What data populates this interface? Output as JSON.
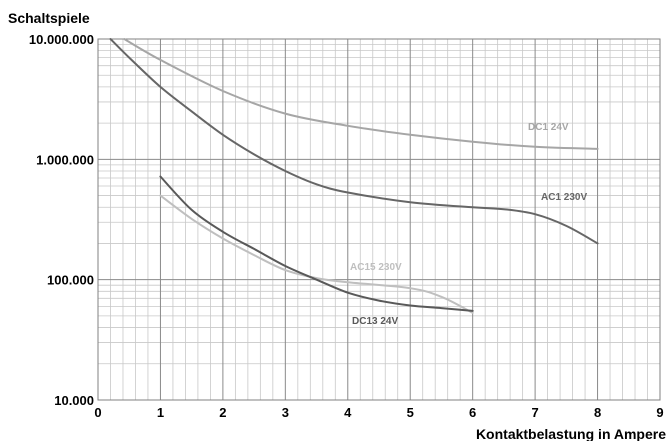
{
  "chart_data": {
    "type": "line",
    "xlabel": "Kontaktbelastung in Ampere",
    "ylabel": "Schaltspiele",
    "xlim": [
      0,
      9
    ],
    "ylim": [
      10000,
      10000000
    ],
    "y_scale": "log",
    "grid": true,
    "x_ticks": [
      "0",
      "1",
      "2",
      "3",
      "4",
      "5",
      "6",
      "7",
      "8",
      "9"
    ],
    "y_ticks": [
      "10.000",
      "100.000",
      "1.000.000",
      "10.000.000"
    ],
    "y_tick_values": [
      10000,
      100000,
      1000000,
      10000000
    ],
    "series": [
      {
        "name": "DC1 24V",
        "color": "#a6a6a6",
        "x": [
          0.42,
          1,
          2,
          3,
          4,
          5,
          6,
          7,
          8
        ],
        "y": [
          10000000,
          6700000,
          3700000,
          2400000,
          1900000,
          1600000,
          1400000,
          1270000,
          1220000
        ]
      },
      {
        "name": "AC1 230V",
        "color": "#666666",
        "x": [
          0.2,
          0.5,
          1,
          1.5,
          2,
          2.5,
          3,
          3.5,
          4,
          5,
          6,
          6.5,
          7,
          7.5,
          8
        ],
        "y": [
          10000000,
          7000000,
          4000000,
          2500000,
          1600000,
          1100000,
          800000,
          620000,
          530000,
          440000,
          400000,
          385000,
          350000,
          280000,
          200000
        ]
      },
      {
        "name": "AC15 230V",
        "color": "#bfbfbf",
        "x": [
          1,
          1.5,
          2,
          2.5,
          3,
          3.5,
          4,
          5,
          5.5,
          6
        ],
        "y": [
          500000,
          320000,
          220000,
          160000,
          120000,
          103000,
          95000,
          85000,
          72000,
          53000
        ]
      },
      {
        "name": "DC13 24V",
        "color": "#595959",
        "x": [
          1,
          1.5,
          2,
          2.5,
          3,
          3.5,
          4,
          4.5,
          5,
          5.5,
          6
        ],
        "y": [
          720000,
          380000,
          250000,
          180000,
          130000,
          100000,
          78000,
          67000,
          61000,
          58000,
          55000
        ]
      }
    ]
  }
}
